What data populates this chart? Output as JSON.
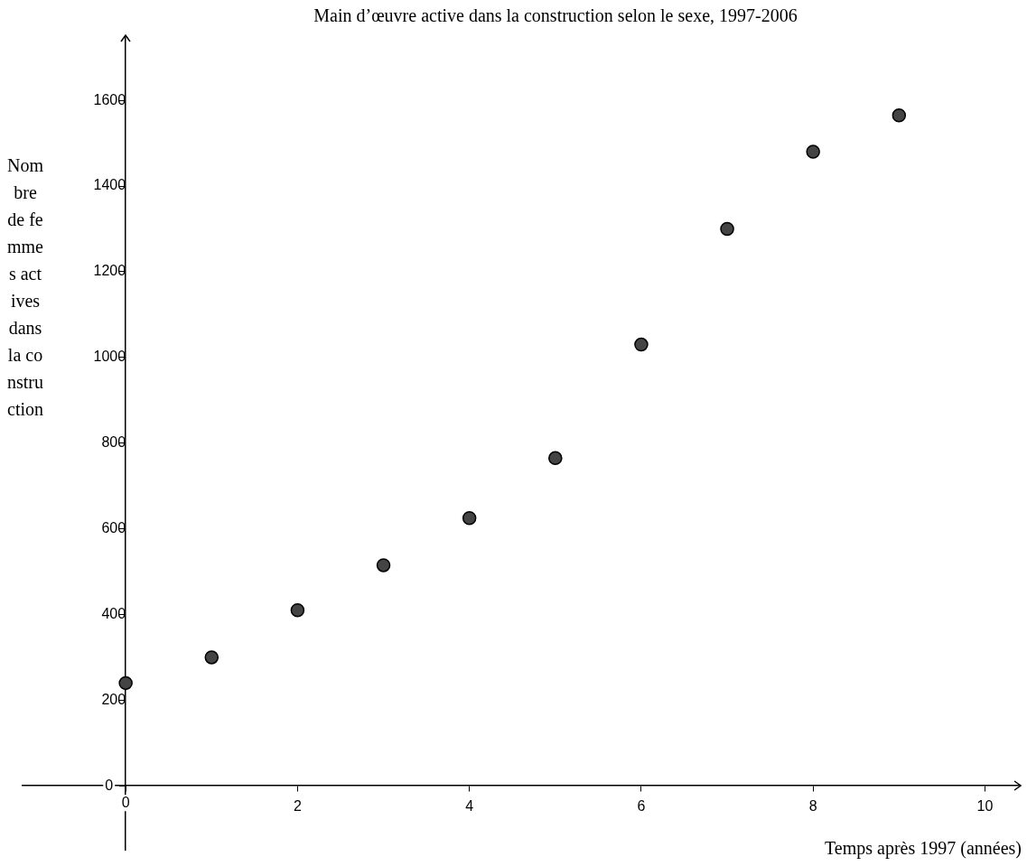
{
  "chart_data": {
    "type": "scatter",
    "title": "Main d’œuvre active dans la construction selon le sexe, 1997-2006",
    "xlabel": "Temps après 1997 (années)",
    "ylabel": "Nombre de femmes actives dans la construction",
    "x": [
      0,
      1,
      2,
      3,
      4,
      5,
      6,
      7,
      8,
      9
    ],
    "values": [
      240,
      300,
      410,
      515,
      625,
      765,
      1030,
      1300,
      1480,
      1565
    ],
    "color": "#444444",
    "marker": "circle",
    "xlim": [
      -1.2,
      10.4
    ],
    "ylim": [
      -150,
      1750
    ],
    "xticks": [
      0,
      2,
      4,
      6,
      8,
      10
    ],
    "yticks": [
      0,
      200,
      400,
      600,
      800,
      1000,
      1200,
      1400,
      1600
    ]
  }
}
